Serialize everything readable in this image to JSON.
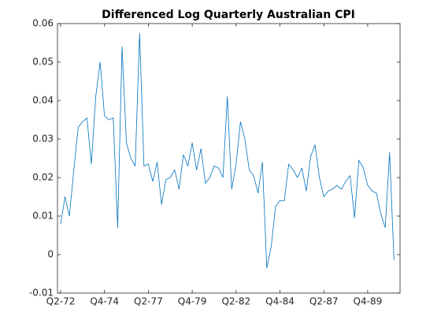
{
  "chart_data": {
    "type": "line",
    "title": "Differenced Log Quarterly Australian CPI",
    "categories": [
      "Q2-72",
      null,
      null,
      null,
      null,
      null,
      null,
      null,
      null,
      null,
      "Q4-74",
      null,
      null,
      null,
      null,
      null,
      null,
      null,
      null,
      null,
      "Q2-77",
      null,
      null,
      null,
      null,
      null,
      null,
      null,
      null,
      null,
      "Q4-79",
      null,
      null,
      null,
      null,
      null,
      null,
      null,
      null,
      null,
      "Q2-82",
      null,
      null,
      null,
      null,
      null,
      null,
      null,
      null,
      null,
      "Q4-84",
      null,
      null,
      null,
      null,
      null,
      null,
      null,
      null,
      null,
      "Q2-87",
      null,
      null,
      null,
      null,
      null,
      null,
      null,
      null,
      null,
      "Q4-89",
      null,
      null,
      null,
      null,
      null,
      null
    ],
    "series": [
      {
        "color": "#0072bd",
        "values": [
          0.008,
          0.015,
          0.01,
          0.022,
          0.033,
          0.0345,
          0.0355,
          0.0235,
          0.041,
          0.05,
          0.036,
          0.035,
          0.0355,
          0.007,
          0.054,
          0.029,
          0.025,
          0.023,
          0.0575,
          0.023,
          0.0235,
          0.019,
          0.024,
          0.013,
          0.0195,
          0.02,
          0.022,
          0.017,
          0.026,
          0.023,
          0.029,
          0.022,
          0.0275,
          0.0185,
          0.02,
          0.023,
          0.0225,
          0.02,
          0.041,
          0.017,
          0.0235,
          0.0345,
          0.03,
          0.022,
          0.0205,
          0.016,
          0.024,
          -0.0035,
          0.002,
          0.0125,
          0.014,
          0.014,
          0.0235,
          0.022,
          0.02,
          0.0225,
          0.0165,
          0.0255,
          0.0285,
          0.02,
          0.015,
          0.0165,
          0.017,
          0.018,
          0.017,
          0.019,
          0.0205,
          0.0095,
          0.0245,
          0.0225,
          0.018,
          0.0165,
          0.016,
          0.0105,
          0.007,
          0.0265,
          -0.0015
        ]
      }
    ],
    "ylim": [
      -0.01,
      0.06
    ],
    "yticks": [
      -0.01,
      0,
      0.01,
      0.02,
      0.03,
      0.04,
      0.05,
      0.06
    ]
  }
}
